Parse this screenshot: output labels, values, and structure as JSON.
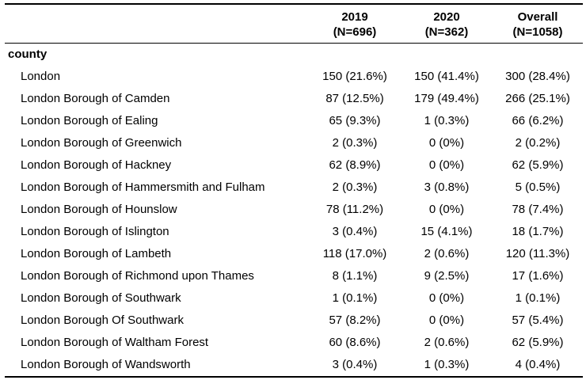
{
  "table": {
    "columns": [
      {
        "year": "2019",
        "n": "(N=696)"
      },
      {
        "year": "2020",
        "n": "(N=362)"
      },
      {
        "year": "Overall",
        "n": "(N=1058)"
      }
    ],
    "group_label": "county",
    "rows": [
      {
        "label": "London",
        "values": [
          "150 (21.6%)",
          "150 (41.4%)",
          "300 (28.4%)"
        ]
      },
      {
        "label": "London Borough of Camden",
        "values": [
          "87 (12.5%)",
          "179 (49.4%)",
          "266 (25.1%)"
        ]
      },
      {
        "label": "London Borough of Ealing",
        "values": [
          "65 (9.3%)",
          "1 (0.3%)",
          "66 (6.2%)"
        ]
      },
      {
        "label": "London Borough of Greenwich",
        "values": [
          "2 (0.3%)",
          "0 (0%)",
          "2 (0.2%)"
        ]
      },
      {
        "label": "London Borough of Hackney",
        "values": [
          "62 (8.9%)",
          "0 (0%)",
          "62 (5.9%)"
        ]
      },
      {
        "label": "London Borough of Hammersmith and Fulham",
        "values": [
          "2 (0.3%)",
          "3 (0.8%)",
          "5 (0.5%)"
        ]
      },
      {
        "label": "London Borough of Hounslow",
        "values": [
          "78 (11.2%)",
          "0 (0%)",
          "78 (7.4%)"
        ]
      },
      {
        "label": "London Borough of Islington",
        "values": [
          "3 (0.4%)",
          "15 (4.1%)",
          "18 (1.7%)"
        ]
      },
      {
        "label": "London Borough of Lambeth",
        "values": [
          "118 (17.0%)",
          "2 (0.6%)",
          "120 (11.3%)"
        ]
      },
      {
        "label": "London Borough of Richmond upon Thames",
        "values": [
          "8 (1.1%)",
          "9 (2.5%)",
          "17 (1.6%)"
        ]
      },
      {
        "label": "London Borough of Southwark",
        "values": [
          "1 (0.1%)",
          "0 (0%)",
          "1 (0.1%)"
        ]
      },
      {
        "label": "London Borough Of Southwark",
        "values": [
          "57 (8.2%)",
          "0 (0%)",
          "57 (5.4%)"
        ]
      },
      {
        "label": "London Borough of Waltham Forest",
        "values": [
          "60 (8.6%)",
          "2 (0.6%)",
          "62 (5.9%)"
        ]
      },
      {
        "label": "London Borough of Wandsworth",
        "values": [
          "3 (0.4%)",
          "1 (0.3%)",
          "4 (0.4%)"
        ]
      }
    ]
  }
}
